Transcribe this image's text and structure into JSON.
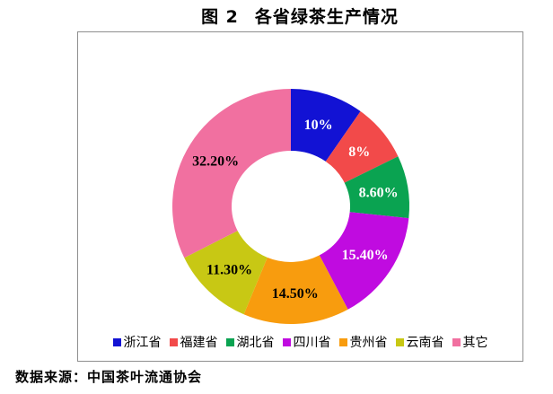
{
  "title": {
    "prefix": "图 2",
    "text": "各省绿茶生产情况"
  },
  "source": "数据来源：中国茶叶流通协会",
  "chart_data": {
    "type": "pie",
    "subtype": "donut",
    "title": "图 2 各省绿茶生产情况",
    "categories": [
      "浙江省",
      "福建省",
      "湖北省",
      "四川省",
      "贵州省",
      "云南省",
      "其它"
    ],
    "values": [
      10,
      8,
      8.6,
      15.4,
      14.5,
      11.3,
      32.2
    ],
    "labels": [
      "10%",
      "8%",
      "8.60%",
      "15.40%",
      "14.50%",
      "11.30%",
      "32.20%"
    ],
    "colors": [
      "#1212d4",
      "#f24a4a",
      "#0aa351",
      "#c00be0",
      "#f89c0e",
      "#c8c814",
      "#f170a0"
    ],
    "label_text_colors": [
      "#ffffff",
      "#ffffff",
      "#ffffff",
      "#ffffff",
      "#000000",
      "#000000",
      "#000000"
    ],
    "start_angle_deg": 0,
    "direction": "clockwise",
    "hole_ratio": 0.5,
    "legend_position": "bottom",
    "source_note": "数据来源：中国茶叶流通协会"
  }
}
